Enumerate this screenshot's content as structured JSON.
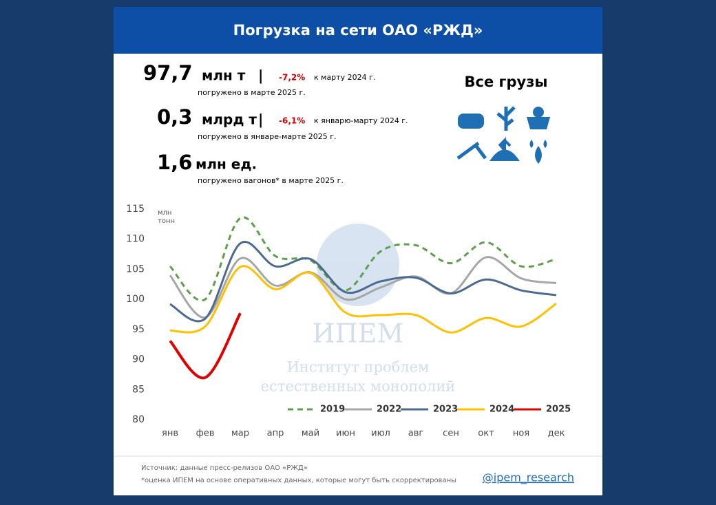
{
  "header": {
    "title": "Погрузка на сети ОАО «РЖД»"
  },
  "stats": [
    {
      "value": "97,7",
      "unit": "млн т",
      "sep": "|",
      "change": "-7,2%",
      "compare": "к марту 2024 г.",
      "note": "погружено в марте 2025 г."
    },
    {
      "value": "0,3",
      "unit": "млрд т",
      "sep": "|",
      "change": "-6,1%",
      "compare": "к январю-марту 2024 г.",
      "note": "погружено в январе-марте 2025 г."
    },
    {
      "value": "1,6",
      "unit": "млн ед.",
      "note": "погружено вагонов* в марте 2025 г."
    }
  ],
  "cargo_title": "Все грузы",
  "watermark": {
    "name": "ИПЕМ",
    "line1": "Институт проблем",
    "line2": "естественных монополий"
  },
  "chart_data": {
    "type": "line",
    "y_label": "млн тонн",
    "categories": [
      "янв",
      "фев",
      "мар",
      "апр",
      "май",
      "июн",
      "июл",
      "авг",
      "сен",
      "окт",
      "ноя",
      "дек"
    ],
    "ylim": [
      80,
      115
    ],
    "yticks": [
      80,
      85,
      90,
      95,
      100,
      105,
      110,
      115
    ],
    "grid": false,
    "smooth": true,
    "series": [
      {
        "name": "2019",
        "color": "#5e9e4c",
        "dashed": true,
        "values": [
          105.5,
          100,
          113.5,
          107.2,
          106.5,
          101.5,
          108,
          109,
          106,
          109.5,
          105.5,
          106.7
        ]
      },
      {
        "name": "2022",
        "color": "#a6a6a6",
        "values": [
          104,
          97,
          106.8,
          102.3,
          104.5,
          100,
          102,
          103.8,
          101,
          107,
          103.5,
          102.7
        ]
      },
      {
        "name": "2023",
        "color": "#4a6a8f",
        "values": [
          99.2,
          96.8,
          109.3,
          105.5,
          106.7,
          101.2,
          103,
          103.6,
          101,
          103.3,
          101.5,
          100.7
        ]
      },
      {
        "name": "2024",
        "color": "#ffc000",
        "values": [
          94.8,
          95.5,
          105.4,
          101.7,
          104.4,
          97.8,
          97.4,
          97.4,
          94.5,
          96.9,
          95.5,
          99.3
        ]
      },
      {
        "name": "2025",
        "color": "#e00000",
        "width": 4,
        "values": [
          93.1,
          87,
          97.7,
          null,
          null,
          null,
          null,
          null,
          null,
          null,
          null,
          null
        ]
      }
    ]
  },
  "footer": {
    "source": "Источник: данные пресс-релизов ОАО «РЖД»",
    "note": "*оценка ИПЕМ на основе оперативных данных, которые могут быть скорректированы",
    "handle": "@ipem_research"
  }
}
